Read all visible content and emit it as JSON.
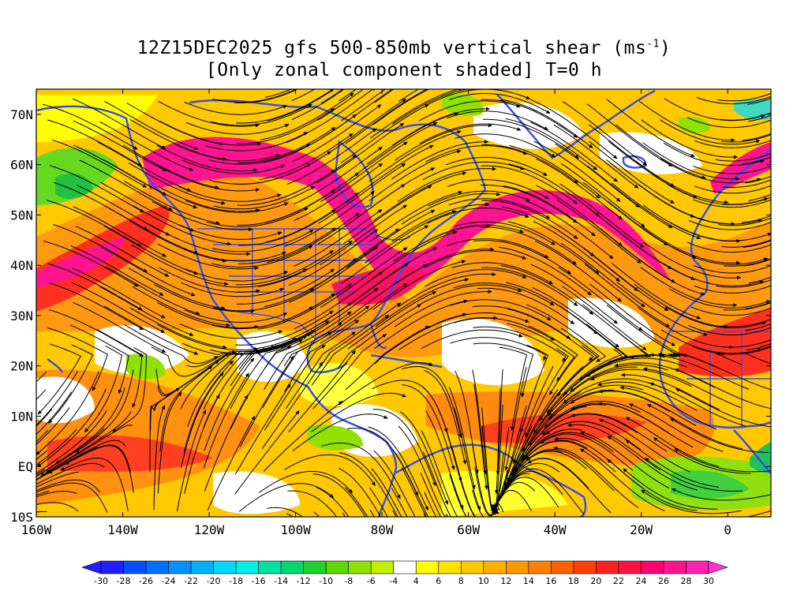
{
  "title": {
    "line1": "12Z15DEC2025 gfs 500-850mb vertical shear (ms",
    "line1_sup": "-1",
    "line1_end": ")",
    "line2": "[Only zonal component shaded] T=0 h"
  },
  "axes": {
    "lat_labels": [
      "70N",
      "60N",
      "50N",
      "40N",
      "30N",
      "20N",
      "10N",
      "EQ",
      "10S"
    ],
    "lat_values": [
      70,
      60,
      50,
      40,
      30,
      20,
      10,
      0,
      -10
    ],
    "lon_labels": [
      "160W",
      "140W",
      "120W",
      "100W",
      "80W",
      "60W",
      "40W",
      "20W",
      "0"
    ],
    "lon_values": [
      -160,
      -140,
      -120,
      -100,
      -80,
      -60,
      -40,
      -20,
      0
    ],
    "lon_range": [
      -160,
      10
    ],
    "lat_range": [
      -10,
      75
    ]
  },
  "colorbar": {
    "labels": [
      "-30",
      "-28",
      "-26",
      "-24",
      "-22",
      "-20",
      "-18",
      "-16",
      "-14",
      "-12",
      "-10",
      "-8",
      "-6",
      "-4",
      "4",
      "6",
      "8",
      "10",
      "12",
      "14",
      "16",
      "18",
      "20",
      "22",
      "24",
      "26",
      "28",
      "30"
    ],
    "colors": [
      "#1f1fff",
      "#0050ff",
      "#0070ff",
      "#0090ff",
      "#00b0ff",
      "#00d8ff",
      "#00f0e8",
      "#00e0a0",
      "#00d870",
      "#20d030",
      "#60d800",
      "#90e000",
      "#c0f000",
      "#ffffff",
      "#ffff00",
      "#ffe000",
      "#ffc800",
      "#ffb000",
      "#ff9800",
      "#ff8000",
      "#ff6000",
      "#ff4000",
      "#ff2020",
      "#ff1040",
      "#ff0070",
      "#ff1490",
      "#ff20b0"
    ],
    "under_color": "#2020ff",
    "over_color": "#ff30d0"
  },
  "colors": {
    "coast": "#3a4fe8",
    "streamline": "#000000"
  }
}
